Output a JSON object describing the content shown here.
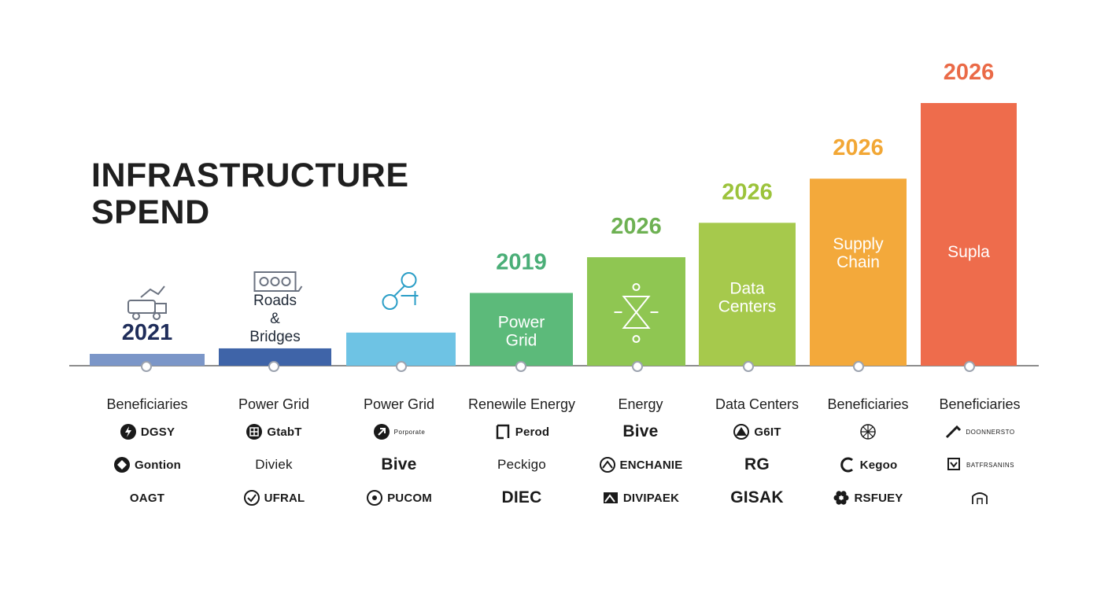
{
  "title": {
    "line1": "INFRASTRUCTURE",
    "line2": "SPEND"
  },
  "chart_data": {
    "type": "bar",
    "title": "INFRASTRUCTURE SPEND",
    "ylim": [
      0,
      100
    ],
    "grid": false,
    "categories": [
      "Beneficiaries",
      "Power Grid",
      "Power Grid",
      "Renewile Energy",
      "Energy",
      "Data Centers",
      "Beneficiaries",
      "Beneficiaries"
    ],
    "values": [
      4.5,
      6.6,
      12.6,
      27.7,
      41.3,
      54.4,
      71.2,
      100
    ],
    "bars": [
      {
        "value": 4.5,
        "color": "#7b96c8",
        "year": "2021",
        "year_color": "#1f2d5a",
        "year_pos": "above",
        "label": [],
        "icon": "truck-icon"
      },
      {
        "value": 6.6,
        "color": "#3f64a8",
        "year": "",
        "year_color": "",
        "year_pos": "above",
        "label": [
          "Roads",
          "&",
          "Bridges"
        ],
        "icon": "road-bridge-icon"
      },
      {
        "value": 12.6,
        "color": "#6ec3e4",
        "year": "",
        "year_color": "",
        "year_pos": "above",
        "label": [],
        "icon": "network-icon"
      },
      {
        "value": 27.7,
        "color": "#5cba7a",
        "year": "2019",
        "year_color": "#4aae77",
        "year_pos": "above",
        "label": [
          "Power",
          "Grid"
        ],
        "icon": ""
      },
      {
        "value": 41.3,
        "color": "#8fc652",
        "year": "2026",
        "year_color": "#6eb153",
        "year_pos": "above",
        "label": [],
        "icon": "hourglass-icon"
      },
      {
        "value": 54.4,
        "color": "#a6c94c",
        "year": "2026",
        "year_color": "#9cc33b",
        "year_pos": "above",
        "label": [
          "Data",
          "Centers"
        ],
        "icon": ""
      },
      {
        "value": 71.2,
        "color": "#f3a93b",
        "year": "2026",
        "year_color": "#f2a735",
        "year_pos": "above",
        "label": [
          "Supply",
          "Chain"
        ],
        "icon": ""
      },
      {
        "value": 100,
        "color": "#ee6c4c",
        "year": "2026",
        "year_color": "#ea6a47",
        "year_pos": "above",
        "label": [
          "Supla"
        ],
        "icon": ""
      }
    ]
  },
  "columns": [
    {
      "header": "Beneficiaries",
      "logos": [
        {
          "text": "DGSY",
          "icon": "bolt-circle-icon"
        },
        {
          "text": "Gontion",
          "icon": "diamond-circle-icon"
        },
        {
          "text": "OAGT",
          "icon": ""
        }
      ]
    },
    {
      "header": "Power Grid",
      "logos": [
        {
          "text": "GtabT",
          "icon": "grid-circle-icon"
        },
        {
          "text": "Diviek",
          "icon": ""
        },
        {
          "text": "UFRAL",
          "icon": "check-circle-icon"
        }
      ]
    },
    {
      "header": "Power Grid",
      "logos": [
        {
          "text": "Porporate",
          "icon": "arrow-circle-icon"
        },
        {
          "text": "Bive",
          "icon": ""
        },
        {
          "text": "PUCOM",
          "icon": "gear-circle-icon"
        }
      ]
    },
    {
      "header": "Renewile Energy",
      "logos": [
        {
          "text": "Perod",
          "icon": "square-bracket-icon"
        },
        {
          "text": "Peckigo",
          "icon": ""
        },
        {
          "text": "DIEC",
          "icon": ""
        }
      ]
    },
    {
      "header": "Energy",
      "logos": [
        {
          "text": "Bive",
          "icon": ""
        },
        {
          "text": "ENCHANIE",
          "icon": "mountain-circle-icon"
        },
        {
          "text": "DIVIPAEK",
          "icon": "mountain-square-icon"
        }
      ]
    },
    {
      "header": "Data Centers",
      "logos": [
        {
          "text": "G6IT",
          "icon": "peak-circle-icon"
        },
        {
          "text": "RG",
          "icon": ""
        },
        {
          "text": "GISAK",
          "icon": ""
        }
      ]
    },
    {
      "header": "Beneficiaries",
      "logos": [
        {
          "text": "",
          "icon": "globe-icon"
        },
        {
          "text": "Kegoo",
          "icon": "c-ring-icon"
        },
        {
          "text": "RSFUEY",
          "icon": "flower-icon"
        }
      ]
    },
    {
      "header": "Beneficiaries",
      "logos": [
        {
          "text": "DOONNERSTO",
          "icon": "slash-peak-icon"
        },
        {
          "text": "BATFRSANINS",
          "icon": "shield-box-icon"
        },
        {
          "text": "",
          "icon": "building-line-icon"
        }
      ]
    }
  ]
}
